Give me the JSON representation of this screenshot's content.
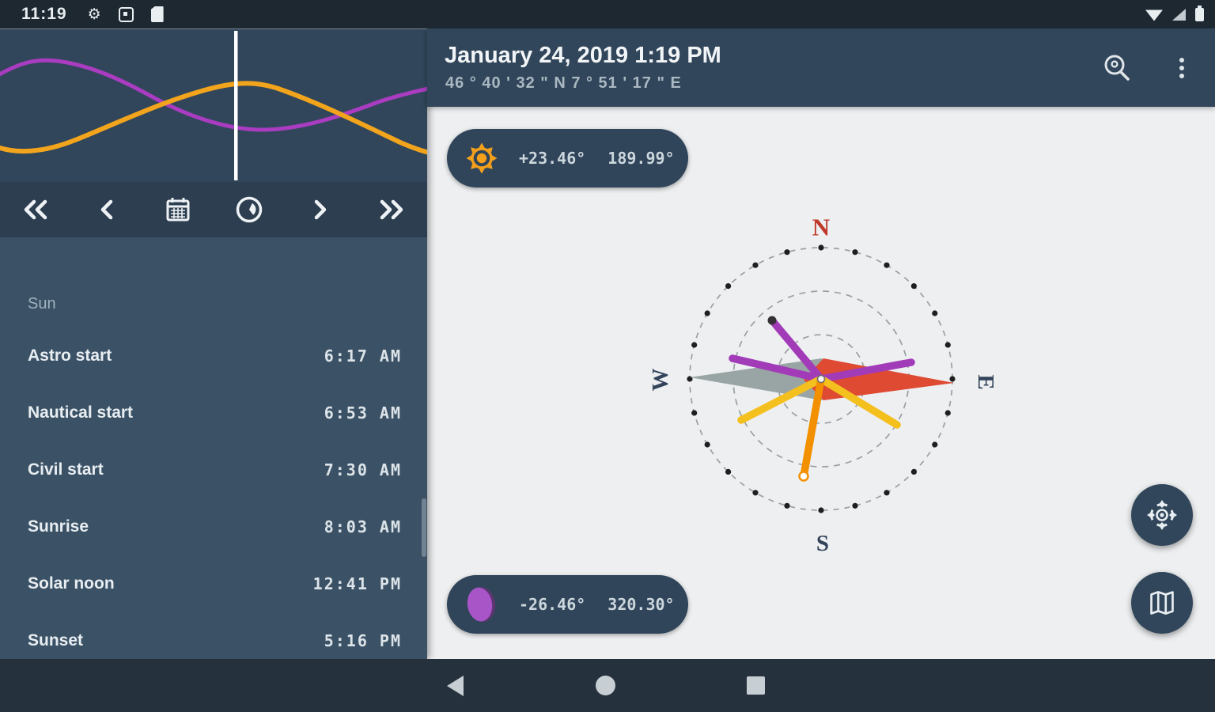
{
  "status_bar": {
    "time": "11:19",
    "left_icons": [
      "gear-icon",
      "screenshot-icon",
      "file-icon"
    ],
    "right_icons": [
      "wifi-icon",
      "cell-signal-icon",
      "battery-icon"
    ]
  },
  "left_panel": {
    "chart": {
      "description": "sun and moon elevation curves over the day with current-time marker",
      "series": [
        {
          "name": "moon elevation",
          "color": "#a93cc0"
        },
        {
          "name": "sun elevation",
          "color": "#f2a41c"
        }
      ],
      "marker_color": "#ffffff"
    },
    "toolbar_icons": [
      "fast-rewind",
      "chevron-left",
      "calendar",
      "clock",
      "chevron-right",
      "fast-forward"
    ],
    "section_title": "Sun",
    "rows": [
      {
        "label": "Astro start",
        "time": "6:17 AM"
      },
      {
        "label": "Nautical start",
        "time": "6:53 AM"
      },
      {
        "label": "Civil start",
        "time": "7:30 AM"
      },
      {
        "label": "Sunrise",
        "time": "8:03 AM"
      },
      {
        "label": "Solar noon",
        "time": "12:41 PM"
      },
      {
        "label": "Sunset",
        "time": "5:16 PM"
      }
    ]
  },
  "header": {
    "title": "January 24, 2019 1:19 PM",
    "coordinates": "46 ° 40 ' 32 \" N 7 ° 51 ' 17 \" E",
    "action_icons": [
      "search-location-icon",
      "overflow-menu-icon"
    ]
  },
  "main": {
    "sun_badge": {
      "icon": "sun-icon",
      "elevation": "+23.46°",
      "azimuth": "189.99°"
    },
    "moon_badge": {
      "icon": "moon-icon",
      "elevation": "-26.46°",
      "azimuth": "320.30°"
    },
    "compass": {
      "north": "N",
      "east": "E",
      "south": "S",
      "west": "W",
      "colors": {
        "needle_east": "#df4a33",
        "needle_west": "#99a5a4",
        "moon_lines": "#a23bb8",
        "sun_event_lines": "#f4c01e",
        "sun_current_line": "#f39000",
        "north_label": "#c0392b",
        "other_labels": "#32435a"
      },
      "rings": "three dashed elevation circles with 24 black dots every 15 degrees on horizon ring"
    },
    "fabs": [
      "compass-calibration-icon",
      "map-icon"
    ]
  },
  "nav_bar": {
    "buttons": [
      "back",
      "home",
      "recents"
    ]
  },
  "colors": {
    "status_bar_bg": "#1d2831",
    "panel_bg": "#3b5266",
    "toolbar_bg": "#2c3e50",
    "chart_bg": "#31465a",
    "header_bg": "#31465a",
    "pill_bg": "#30455a",
    "main_bg": "#edeff1",
    "nav_bg": "#25323d"
  }
}
